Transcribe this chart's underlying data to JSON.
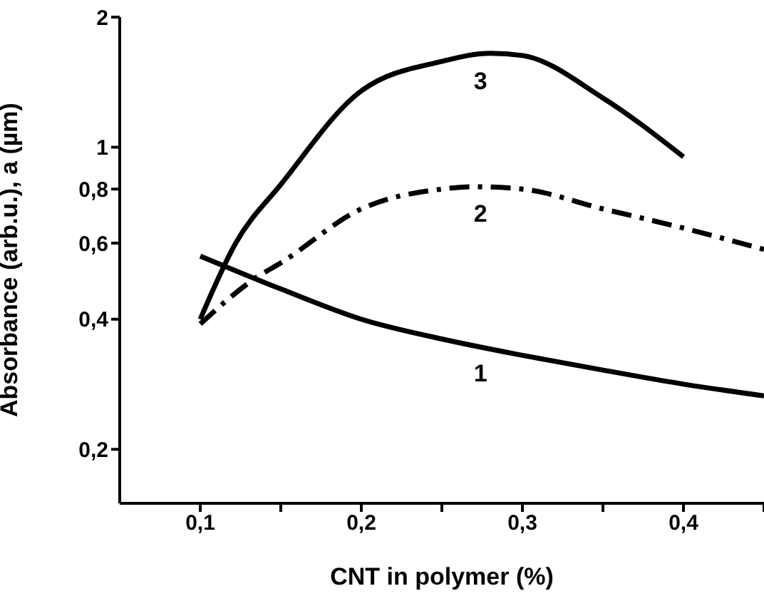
{
  "chart_data": {
    "type": "line",
    "xlabel": "CNT in polymer (%)",
    "ylabel": "Absorbance (arb.u.), a (µm)",
    "xlim": [
      0.05,
      0.45
    ],
    "xticks": [
      {
        "value": 0.1,
        "label": "0,1"
      },
      {
        "value": 0.15,
        "label": null
      },
      {
        "value": 0.2,
        "label": "0,2"
      },
      {
        "value": 0.25,
        "label": null
      },
      {
        "value": 0.3,
        "label": "0,3"
      },
      {
        "value": 0.35,
        "label": null
      },
      {
        "value": 0.4,
        "label": "0,4"
      },
      {
        "value": 0.45,
        "label": null
      }
    ],
    "ylim": [
      0.15,
      2
    ],
    "yticks": [
      {
        "value": 0.2,
        "label": "0,2"
      },
      {
        "value": 0.4,
        "label": "0,4"
      },
      {
        "value": 0.6,
        "label": "0,6"
      },
      {
        "value": 0.8,
        "label": "0,8"
      },
      1,
      2
    ],
    "log": "y",
    "grid": false,
    "legend": false,
    "marker": "none",
    "series": [
      {
        "name": "1",
        "color": "#000000",
        "line_style": "solid",
        "x": [
          0.1,
          0.15,
          0.2,
          0.25,
          0.3,
          0.35,
          0.4,
          0.45
        ],
        "values": [
          0.56,
          0.47,
          0.4,
          0.36,
          0.33,
          0.305,
          0.283,
          0.266
        ]
      },
      {
        "name": "2",
        "color": "#000000",
        "line_style": "dashed",
        "x": [
          0.1,
          0.135,
          0.15,
          0.2,
          0.25,
          0.27,
          0.3,
          0.35,
          0.4,
          0.45
        ],
        "values": [
          0.39,
          0.5,
          0.54,
          0.72,
          0.8,
          0.81,
          0.8,
          0.72,
          0.65,
          0.58
        ]
      },
      {
        "name": "3",
        "color": "#000000",
        "line_style": "solid",
        "x": [
          0.1,
          0.122,
          0.15,
          0.2,
          0.25,
          0.28,
          0.3,
          0.35,
          0.4
        ],
        "values": [
          0.4,
          0.6,
          0.82,
          1.35,
          1.58,
          1.65,
          1.63,
          1.3,
          0.95
        ]
      }
    ]
  }
}
